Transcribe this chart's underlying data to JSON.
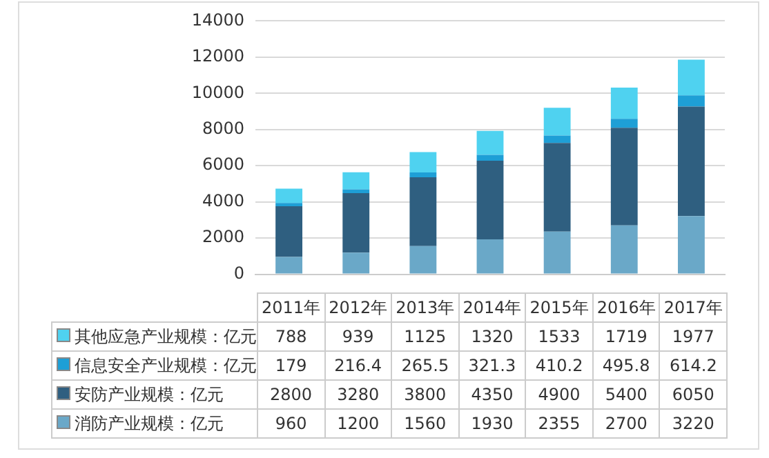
{
  "chart_data": {
    "type": "bar",
    "stacked": true,
    "categories": [
      "2011年",
      "2012年",
      "2013年",
      "2014年",
      "2015年",
      "2016年",
      "2017年"
    ],
    "series": [
      {
        "name": "消防产业规模：亿元",
        "color": "#6aa8c8",
        "values": [
          960,
          1200,
          1560,
          1930,
          2355,
          2700,
          3220
        ]
      },
      {
        "name": "安防产业规模：亿元",
        "color": "#2f5f80",
        "values": [
          2800,
          3280,
          3800,
          4350,
          4900,
          5400,
          6050
        ]
      },
      {
        "name": "信息安全产业规模：亿元",
        "color": "#1e9fd6",
        "values": [
          179,
          216.4,
          265.5,
          321.3,
          410.2,
          495.8,
          614.2
        ]
      },
      {
        "name": "其他应急产业规模：亿元",
        "color": "#4fd2f0",
        "values": [
          788,
          939,
          1125,
          1320,
          1533,
          1719,
          1977
        ]
      }
    ],
    "ylim": [
      0,
      14000
    ],
    "yticks": [
      0,
      2000,
      4000,
      6000,
      8000,
      10000,
      12000,
      14000
    ],
    "grid": "y",
    "data_labels": true,
    "legend": "bottom"
  }
}
